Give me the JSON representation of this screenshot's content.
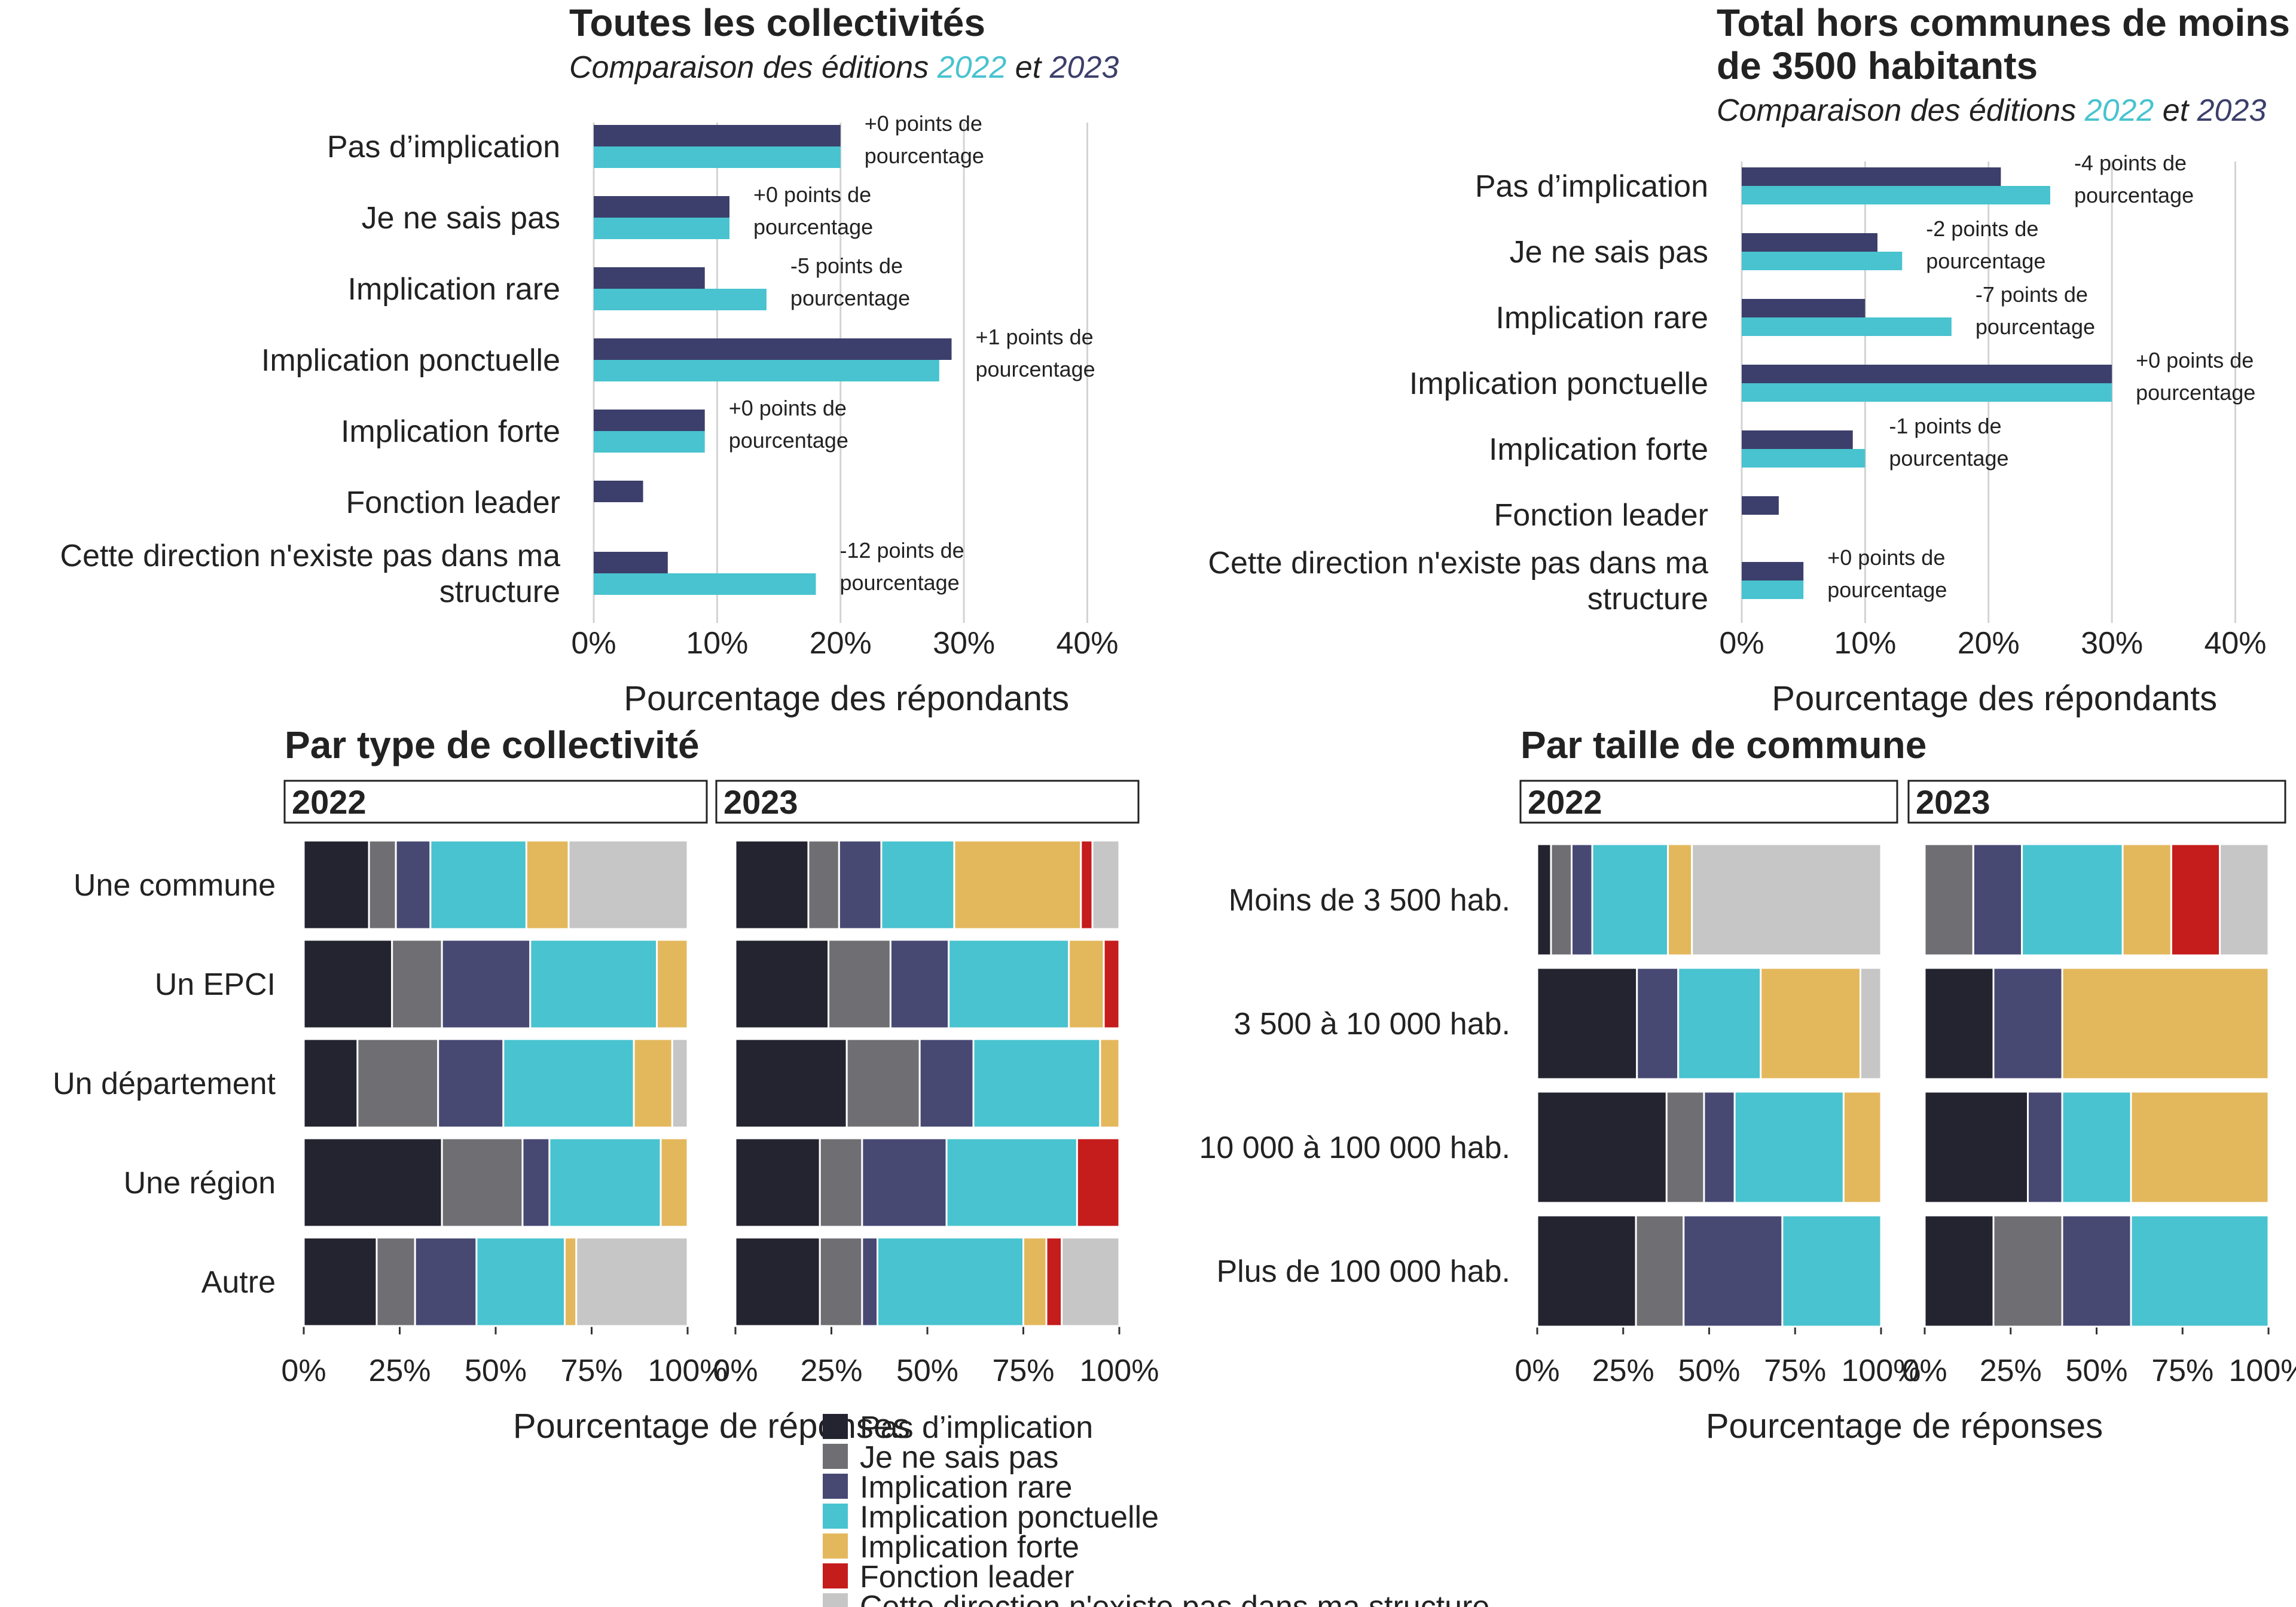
{
  "colors": {
    "pas_implication": "#23242f",
    "je_ne_sais_pas": "#6f6f73",
    "implication_rare": "#474973",
    "implication_ponctuelle": "#48c3cf",
    "implication_forte": "#e3b85c",
    "fonction_leader": "#c51c1c",
    "nexiste_pas": "#c6c6c6",
    "year_2022": "#48c3cf",
    "year_2023": "#3c3f6b",
    "grid": "#d3d3d3",
    "text": "#222222"
  },
  "chart_data": [
    {
      "type": "bar",
      "orientation": "horizontal",
      "title": "Toutes les collectivités",
      "subtitle": {
        "prefix": "Comparaison des éditions ",
        "y1": "2022",
        "mid": " et ",
        "y2": "2023"
      },
      "xlabel": "Pourcentage des répondants",
      "xlim": [
        0,
        42
      ],
      "xticks": [
        "0%",
        "10%",
        "20%",
        "30%",
        "40%"
      ],
      "grid": true,
      "categories": [
        "Pas d’implication",
        "Je ne sais pas",
        "Implication rare",
        "Implication ponctuelle",
        "Implication forte",
        "Fonction leader",
        "Cette direction n'existe pas dans ma structure"
      ],
      "category_lines": [
        [
          "Pas d’implication"
        ],
        [
          "Je ne sais pas"
        ],
        [
          "Implication rare"
        ],
        [
          "Implication ponctuelle"
        ],
        [
          "Implication forte"
        ],
        [
          "Fonction leader"
        ],
        [
          "Cette direction n'existe pas dans ma",
          "structure"
        ]
      ],
      "series": [
        {
          "name": "2023",
          "values": [
            20,
            11,
            9,
            29,
            9,
            4,
            6
          ]
        },
        {
          "name": "2022",
          "values": [
            20,
            11,
            14,
            28,
            9,
            0,
            18
          ]
        }
      ],
      "annotations": [
        [
          "+0 points de",
          "pourcentage"
        ],
        [
          "+0 points de",
          "pourcentage"
        ],
        [
          "-5 points de",
          "pourcentage"
        ],
        [
          "+1 points de",
          "pourcentage"
        ],
        [
          "+0 points de",
          "pourcentage"
        ],
        null,
        [
          "-12 points de",
          "pourcentage"
        ]
      ]
    },
    {
      "type": "bar",
      "orientation": "horizontal",
      "title": "Total hors communes de moins de 3500 habitants",
      "title_lines": [
        "Total hors communes de moins",
        "de 3500 habitants"
      ],
      "subtitle": {
        "prefix": "Comparaison des éditions ",
        "y1": "2022",
        "mid": " et ",
        "y2": "2023"
      },
      "xlabel": "Pourcentage des répondants",
      "xlim": [
        0,
        42
      ],
      "xticks": [
        "0%",
        "10%",
        "20%",
        "30%",
        "40%"
      ],
      "grid": true,
      "categories": [
        "Pas d’implication",
        "Je ne sais pas",
        "Implication rare",
        "Implication ponctuelle",
        "Implication forte",
        "Fonction leader",
        "Cette direction n'existe pas dans ma structure"
      ],
      "category_lines": [
        [
          "Pas d’implication"
        ],
        [
          "Je ne sais pas"
        ],
        [
          "Implication rare"
        ],
        [
          "Implication ponctuelle"
        ],
        [
          "Implication forte"
        ],
        [
          "Fonction leader"
        ],
        [
          "Cette direction n'existe pas dans ma",
          "structure"
        ]
      ],
      "series": [
        {
          "name": "2023",
          "values": [
            21,
            11,
            10,
            30,
            9,
            3,
            5
          ]
        },
        {
          "name": "2022",
          "values": [
            25,
            13,
            17,
            30,
            10,
            0,
            5
          ]
        }
      ],
      "annotations": [
        [
          "-4 points de",
          "pourcentage"
        ],
        [
          "-2 points de",
          "pourcentage"
        ],
        [
          "-7 points de",
          "pourcentage"
        ],
        [
          "+0 points de",
          "pourcentage"
        ],
        [
          "-1 points de",
          "pourcentage"
        ],
        null,
        [
          "+0 points de",
          "pourcentage"
        ]
      ]
    },
    {
      "type": "bar",
      "orientation": "horizontal",
      "stacked": true,
      "normalized": true,
      "title": "Par type de collectivité",
      "xlabel": "Pourcentage de réponses",
      "xticks": [
        "0%",
        "25%",
        "50%",
        "75%",
        "100%"
      ],
      "facets": [
        "2022",
        "2023"
      ],
      "categories": [
        "Une commune",
        "Un EPCI",
        "Un département",
        "Une région",
        "Autre"
      ],
      "values": {
        "2022": [
          [
            17,
            7,
            9,
            25,
            11,
            0,
            31
          ],
          [
            23,
            13,
            23,
            33,
            8,
            0,
            0
          ],
          [
            14,
            21,
            17,
            34,
            10,
            0,
            4
          ],
          [
            36,
            21,
            7,
            29,
            7,
            0,
            0
          ],
          [
            19,
            10,
            16,
            23,
            3,
            0,
            29
          ]
        ],
        "2023": [
          [
            19,
            8,
            11,
            19,
            33,
            3,
            7
          ],
          [
            24,
            16,
            15,
            31,
            9,
            4,
            0
          ],
          [
            29,
            19,
            14,
            33,
            5,
            0,
            0
          ],
          [
            22,
            11,
            22,
            34,
            0,
            11,
            0
          ],
          [
            22,
            11,
            4,
            38,
            6,
            4,
            15
          ]
        ]
      }
    },
    {
      "type": "bar",
      "orientation": "horizontal",
      "stacked": true,
      "normalized": true,
      "title": "Par taille de commune",
      "xlabel": "Pourcentage de réponses",
      "xticks": [
        "0%",
        "25%",
        "50%",
        "75%",
        "100%"
      ],
      "facets": [
        "2022",
        "2023"
      ],
      "categories": [
        "Moins de 3 500 hab.",
        "3 500 à 10 000 hab.",
        "10 000 à 100 000 hab.",
        "Plus de 100 000 hab."
      ],
      "values": {
        "2022": [
          [
            4,
            6,
            6,
            22,
            7,
            0,
            55
          ],
          [
            29,
            0,
            12,
            24,
            29,
            0,
            6
          ],
          [
            38,
            11,
            9,
            32,
            11,
            0,
            0
          ],
          [
            29,
            14,
            29,
            29,
            0,
            0,
            0
          ]
        ],
        "2023": [
          [
            0,
            14,
            14,
            29,
            14,
            14,
            14
          ],
          [
            20,
            0,
            20,
            0,
            60,
            0,
            0
          ],
          [
            30,
            0,
            10,
            20,
            40,
            0,
            0
          ],
          [
            20,
            20,
            20,
            40,
            0,
            0,
            0
          ]
        ]
      }
    }
  ],
  "legend": {
    "placement": "bottom-center",
    "entries": [
      {
        "key": "pas_implication",
        "label": "Pas d’implication"
      },
      {
        "key": "je_ne_sais_pas",
        "label": "Je ne sais pas"
      },
      {
        "key": "implication_rare",
        "label": "Implication rare"
      },
      {
        "key": "implication_ponctuelle",
        "label": "Implication ponctuelle"
      },
      {
        "key": "implication_forte",
        "label": "Implication forte"
      },
      {
        "key": "fonction_leader",
        "label": "Fonction leader"
      },
      {
        "key": "nexiste_pas",
        "label": "Cette direction n'existe pas dans ma structure"
      }
    ]
  }
}
